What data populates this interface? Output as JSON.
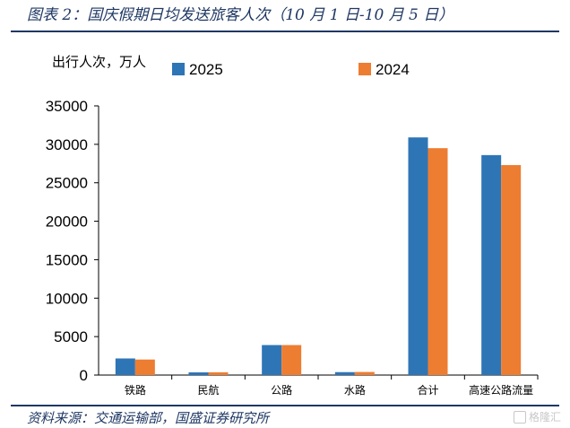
{
  "title": "图表 2：国庆假期日均发送旅客人次（10 月 1 日-10 月 5 日）",
  "source": "资料来源：交通运输部，国盛证券研究所",
  "watermark": "格隆汇",
  "colors": {
    "series_2025": "#2e75b6",
    "series_2024": "#ed7d31",
    "rule": "#1f3864"
  },
  "chart_data": {
    "type": "bar",
    "ylabel": "出行人次，万人",
    "categories": [
      "铁路",
      "民航",
      "公路",
      "水路",
      "合计",
      "高速公路流量"
    ],
    "series": [
      {
        "name": "2025",
        "values": [
          2160,
          350,
          3900,
          380,
          30900,
          28600
        ]
      },
      {
        "name": "2024",
        "values": [
          2020,
          360,
          3900,
          400,
          29500,
          27300
        ]
      }
    ],
    "ylim": [
      0,
      35000
    ],
    "yticks": [
      "0",
      "5000",
      "10000",
      "15000",
      "20000",
      "25000",
      "30000",
      "35000"
    ],
    "grid": false,
    "legend": "top"
  }
}
